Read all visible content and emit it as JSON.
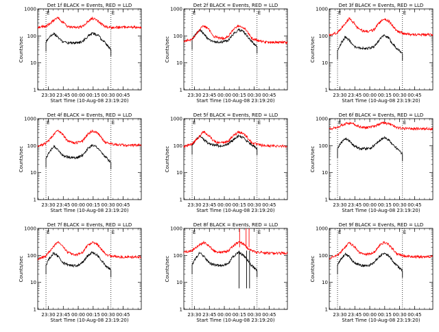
{
  "figure": {
    "ylabel": "Counts/sec",
    "xlabel": "Start Time (10-Aug-08 23:19:20)",
    "x_tick_labels": [
      "23:30",
      "23:45",
      "00:00",
      "00:15",
      "00:30",
      "00:45"
    ],
    "y_tick_labels": [
      "1",
      "10",
      "100",
      "1000"
    ],
    "marker_label": "E",
    "colors": {
      "events": "#000000",
      "lld": "#ff0000",
      "axis": "#000000",
      "marker": "#000000"
    }
  },
  "chart_data": [
    {
      "type": "line",
      "title": "Det 1f BLACK = Events, RED = LLD",
      "xlabel": "Start Time (10-Aug-08 23:19:20)",
      "ylabel": "Counts/sec",
      "x_unit": "minutes after start time",
      "xlim": [
        0,
        104
      ],
      "ylim": [
        1,
        1000
      ],
      "y_scale": "log",
      "markers_x": [
        8.3,
        73.5
      ],
      "series": [
        {
          "name": "Events",
          "color": "#000000",
          "x": [
            8.3,
            12,
            16,
            20,
            25,
            30,
            35,
            40,
            45,
            50,
            55,
            60,
            64,
            68,
            73.5
          ],
          "values": [
            60,
            95,
            125,
            90,
            62,
            55,
            55,
            55,
            62,
            95,
            125,
            110,
            75,
            55,
            32
          ]
        },
        {
          "name": "LLD",
          "color": "#ff0000",
          "x": [
            0,
            8,
            14,
            20,
            25,
            30,
            35,
            40,
            45,
            50,
            55,
            60,
            64,
            68,
            74,
            80,
            88,
            96,
            104
          ],
          "values": [
            215,
            220,
            330,
            460,
            330,
            220,
            205,
            205,
            225,
            330,
            460,
            380,
            270,
            220,
            205,
            205,
            210,
            210,
            210
          ]
        }
      ]
    },
    {
      "type": "line",
      "title": "Det 2f BLACK = Events, RED = LLD",
      "xlabel": "Start Time (10-Aug-08 23:19:20)",
      "ylabel": "Counts/sec",
      "x_unit": "minutes after start time",
      "xlim": [
        0,
        104
      ],
      "ylim": [
        1,
        1000
      ],
      "y_scale": "log",
      "markers_x": [
        8.3,
        73.5
      ],
      "series": [
        {
          "name": "Events",
          "color": "#000000",
          "x": [
            8.3,
            12,
            16,
            20,
            25,
            30,
            35,
            40,
            45,
            50,
            55,
            60,
            64,
            68,
            73.5
          ],
          "values": [
            70,
            120,
            170,
            120,
            72,
            62,
            60,
            62,
            72,
            120,
            170,
            145,
            95,
            62,
            40
          ]
        },
        {
          "name": "LLD",
          "color": "#ff0000",
          "x": [
            0,
            8,
            14,
            20,
            25,
            30,
            35,
            40,
            45,
            50,
            55,
            60,
            64,
            68,
            74,
            80,
            88,
            96,
            104
          ],
          "values": [
            65,
            75,
            140,
            240,
            175,
            100,
            82,
            82,
            100,
            175,
            240,
            205,
            140,
            82,
            68,
            60,
            58,
            58,
            58
          ]
        }
      ]
    },
    {
      "type": "line",
      "title": "Det 3f BLACK = Events, RED = LLD",
      "xlabel": "Start Time (10-Aug-08 23:19:20)",
      "ylabel": "Counts/sec",
      "x_unit": "minutes after start time",
      "xlim": [
        0,
        104
      ],
      "ylim": [
        1,
        1000
      ],
      "y_scale": "log",
      "markers_x": [
        8.3,
        73.5
      ],
      "series": [
        {
          "name": "Events",
          "color": "#000000",
          "x": [
            8.3,
            12,
            16,
            20,
            25,
            30,
            35,
            40,
            45,
            50,
            55,
            60,
            64,
            68,
            73.5
          ],
          "values": [
            30,
            55,
            90,
            70,
            40,
            35,
            35,
            35,
            40,
            70,
            105,
            80,
            50,
            35,
            22
          ]
        },
        {
          "name": "LLD",
          "color": "#ff0000",
          "x": [
            0,
            8,
            14,
            20,
            25,
            30,
            35,
            40,
            45,
            50,
            55,
            60,
            64,
            68,
            74,
            80,
            88,
            96,
            104
          ],
          "values": [
            110,
            130,
            230,
            440,
            300,
            170,
            150,
            150,
            170,
            300,
            440,
            350,
            230,
            150,
            125,
            115,
            112,
            112,
            112
          ]
        }
      ]
    },
    {
      "type": "line",
      "title": "Det 4f BLACK = Events, RED = LLD",
      "xlabel": "Start Time (10-Aug-08 23:19:20)",
      "ylabel": "Counts/sec",
      "x_unit": "minutes after start time",
      "xlim": [
        0,
        104
      ],
      "ylim": [
        1,
        1000
      ],
      "y_scale": "log",
      "markers_x": [
        8.3,
        73.5
      ],
      "series": [
        {
          "name": "Events",
          "color": "#000000",
          "x": [
            8.3,
            12,
            16,
            20,
            25,
            30,
            35,
            40,
            45,
            50,
            55,
            60,
            64,
            68,
            73.5
          ],
          "values": [
            35,
            60,
            95,
            75,
            45,
            38,
            36,
            36,
            45,
            75,
            110,
            85,
            55,
            38,
            24
          ]
        },
        {
          "name": "LLD",
          "color": "#ff0000",
          "x": [
            0,
            8,
            14,
            20,
            25,
            30,
            35,
            40,
            45,
            50,
            55,
            60,
            64,
            68,
            74,
            80,
            88,
            96,
            104
          ],
          "values": [
            95,
            120,
            210,
            360,
            260,
            150,
            130,
            130,
            150,
            260,
            360,
            300,
            200,
            130,
            115,
            108,
            105,
            105,
            105
          ]
        }
      ]
    },
    {
      "type": "line",
      "title": "Det 5f BLACK = Events, RED = LLD",
      "xlabel": "Start Time (10-Aug-08 23:19:20)",
      "ylabel": "Counts/sec",
      "x_unit": "minutes after start time",
      "xlim": [
        0,
        104
      ],
      "ylim": [
        1,
        1000
      ],
      "y_scale": "log",
      "markers_x": [
        8.3,
        73.5
      ],
      "series": [
        {
          "name": "Events",
          "color": "#000000",
          "x": [
            8.3,
            12,
            16,
            20,
            25,
            30,
            35,
            40,
            45,
            50,
            55,
            60,
            64,
            68,
            73.5
          ],
          "values": [
            105,
            160,
            230,
            170,
            120,
            105,
            100,
            100,
            120,
            170,
            235,
            190,
            140,
            110,
            80
          ]
        },
        {
          "name": "LLD",
          "color": "#ff0000",
          "x": [
            0,
            8,
            14,
            20,
            25,
            30,
            35,
            40,
            45,
            50,
            55,
            60,
            64,
            68,
            74,
            80,
            88,
            96,
            104
          ],
          "values": [
            95,
            110,
            190,
            330,
            240,
            150,
            130,
            130,
            150,
            240,
            330,
            280,
            200,
            130,
            110,
            100,
            98,
            98,
            98
          ]
        }
      ]
    },
    {
      "type": "line",
      "title": "Det 6f BLACK = Events, RED = LLD",
      "xlabel": "Start Time (10-Aug-08 23:19:20)",
      "ylabel": "Counts/sec",
      "x_unit": "minutes after start time",
      "xlim": [
        0,
        104
      ],
      "ylim": [
        1,
        1000
      ],
      "y_scale": "log",
      "markers_x": [
        8.3,
        73.5
      ],
      "series": [
        {
          "name": "Events",
          "color": "#000000",
          "x": [
            8.3,
            12,
            16,
            20,
            25,
            30,
            35,
            40,
            45,
            50,
            55,
            60,
            64,
            68,
            73.5
          ],
          "values": [
            80,
            130,
            190,
            150,
            100,
            80,
            78,
            78,
            100,
            150,
            200,
            160,
            110,
            78,
            48
          ]
        },
        {
          "name": "LLD",
          "color": "#ff0000",
          "x": [
            0,
            8,
            14,
            20,
            25,
            30,
            35,
            40,
            45,
            50,
            55,
            60,
            64,
            68,
            74,
            80,
            88,
            96,
            104
          ],
          "values": [
            420,
            470,
            620,
            690,
            620,
            520,
            470,
            470,
            520,
            620,
            700,
            650,
            560,
            470,
            440,
            430,
            425,
            425,
            425
          ]
        }
      ]
    },
    {
      "type": "line",
      "title": "Det 7f BLACK = Events, RED = LLD",
      "xlabel": "Start Time (10-Aug-08 23:19:20)",
      "ylabel": "Counts/sec",
      "x_unit": "minutes after start time",
      "xlim": [
        0,
        104
      ],
      "ylim": [
        1,
        1000
      ],
      "y_scale": "log",
      "markers_x": [
        8.3,
        73.5
      ],
      "series": [
        {
          "name": "Events",
          "color": "#000000",
          "x": [
            8.3,
            12,
            16,
            20,
            25,
            30,
            35,
            40,
            45,
            50,
            55,
            60,
            64,
            68,
            73.5
          ],
          "values": [
            45,
            80,
            125,
            95,
            55,
            45,
            42,
            42,
            55,
            95,
            130,
            100,
            65,
            42,
            28
          ]
        },
        {
          "name": "LLD",
          "color": "#ff0000",
          "x": [
            0,
            8,
            14,
            20,
            25,
            30,
            35,
            40,
            45,
            50,
            55,
            60,
            64,
            68,
            74,
            80,
            88,
            96,
            104
          ],
          "values": [
            75,
            95,
            170,
            320,
            230,
            130,
            110,
            110,
            130,
            230,
            320,
            260,
            170,
            110,
            95,
            90,
            88,
            88,
            88
          ]
        }
      ]
    },
    {
      "type": "line",
      "title": "Det 8f BLACK = Events, RED = LLD",
      "xlabel": "Start Time (10-Aug-08 23:19:20)",
      "ylabel": "Counts/sec",
      "x_unit": "minutes after start time",
      "xlim": [
        0,
        104
      ],
      "ylim": [
        1,
        1000
      ],
      "y_scale": "log",
      "markers_x": [
        8.3,
        73.5
      ],
      "series": [
        {
          "name": "Events",
          "color": "#000000",
          "x": [
            8.3,
            12,
            16,
            20,
            25,
            30,
            35,
            40,
            45,
            50,
            55,
            60,
            64,
            68,
            73.5
          ],
          "values": [
            45,
            80,
            125,
            95,
            55,
            45,
            42,
            42,
            55,
            95,
            130,
            100,
            65,
            42,
            28
          ]
        },
        {
          "name": "LLD",
          "color": "#ff0000",
          "x": [
            0,
            8,
            14,
            20,
            25,
            30,
            35,
            40,
            45,
            50,
            55,
            60,
            64,
            68,
            74,
            80,
            88,
            96,
            104
          ],
          "values": [
            130,
            150,
            220,
            310,
            230,
            150,
            130,
            130,
            150,
            230,
            320,
            260,
            190,
            145,
            130,
            125,
            122,
            122,
            122
          ]
        }
      ],
      "spikes": [
        {
          "series": "LLD",
          "x": 56.0,
          "values": [
            200,
            1000
          ]
        },
        {
          "series": "LLD",
          "x": 62.5,
          "values": [
            200,
            1000
          ]
        },
        {
          "series": "LLD",
          "x": 65.5,
          "values": [
            200,
            1000
          ]
        },
        {
          "series": "Events",
          "x": 55.5,
          "values": [
            6,
            150
          ]
        },
        {
          "series": "Events",
          "x": 63.0,
          "values": [
            6,
            150
          ]
        },
        {
          "series": "Events",
          "x": 66.0,
          "values": [
            6,
            150
          ]
        }
      ]
    },
    {
      "type": "line",
      "title": "Det 9f BLACK = Events, RED = LLD",
      "xlabel": "Start Time (10-Aug-08 23:19:20)",
      "ylabel": "Counts/sec",
      "x_unit": "minutes after start time",
      "xlim": [
        0,
        104
      ],
      "ylim": [
        1,
        1000
      ],
      "y_scale": "log",
      "markers_x": [
        8.3,
        73.5
      ],
      "series": [
        {
          "name": "Events",
          "color": "#000000",
          "x": [
            8.3,
            12,
            16,
            20,
            25,
            30,
            35,
            40,
            45,
            50,
            55,
            60,
            64,
            68,
            73.5
          ],
          "values": [
            45,
            75,
            115,
            90,
            55,
            45,
            42,
            42,
            55,
            90,
            120,
            95,
            62,
            42,
            27
          ]
        },
        {
          "name": "LLD",
          "color": "#ff0000",
          "x": [
            0,
            8,
            14,
            20,
            25,
            30,
            35,
            40,
            45,
            50,
            55,
            60,
            64,
            68,
            74,
            80,
            88,
            96,
            104
          ],
          "values": [
            80,
            100,
            170,
            300,
            220,
            130,
            112,
            112,
            130,
            220,
            310,
            250,
            170,
            112,
            98,
            92,
            90,
            90,
            90
          ]
        }
      ]
    }
  ]
}
